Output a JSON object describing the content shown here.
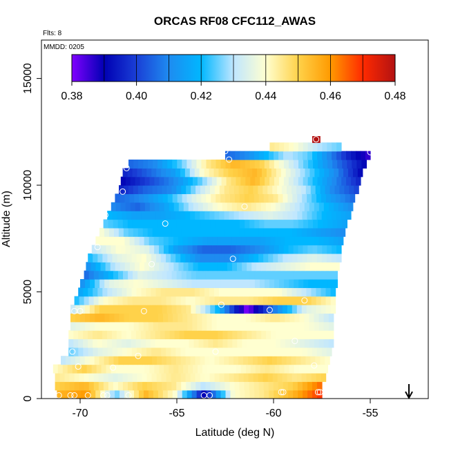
{
  "chart_data": {
    "type": "heatmap",
    "title": "ORCAS RF08 CFC112_AWAS",
    "subtitle": "Flts: 8",
    "annotation": "MMDD: 0205",
    "xlabel": "Latitude (deg N)",
    "ylabel": "Altitude (m)",
    "xlim": [
      -72,
      -52
    ],
    "ylim": [
      0,
      16800
    ],
    "x_ticks": [
      -70,
      -65,
      -60,
      -55
    ],
    "x_tick_labels": [
      "-70",
      "-65",
      "-60",
      "-55"
    ],
    "y_ticks": [
      0,
      5000,
      10000,
      15000
    ],
    "y_tick_labels": [
      "0",
      "5000",
      "10000",
      "15000"
    ],
    "colorbar": {
      "range": [
        0.38,
        0.48
      ],
      "ticks": [
        0.38,
        0.4,
        0.42,
        0.44,
        0.46,
        0.48
      ],
      "tick_labels": [
        "0.38",
        "0.40",
        "0.42",
        "0.44",
        "0.46",
        "0.48"
      ],
      "colors": [
        "#8000ff",
        "#0000b3",
        "#1a3fd6",
        "#1e8bf0",
        "#00b7ff",
        "#bfe6ff",
        "#ffffd0",
        "#ffd24a",
        "#ff9a00",
        "#ff2a00",
        "#b31212"
      ]
    },
    "arrow_marker": {
      "x": -53,
      "direction": "down"
    },
    "layers": [
      {
        "y0": 0,
        "y1": 400,
        "xmin": -71.2,
        "xmax": -57.5,
        "values": [
          0.455,
          0.46,
          0.425,
          0.455,
          0.44,
          0.39,
          0.44,
          0.445,
          0.455,
          0.47
        ]
      },
      {
        "y0": 400,
        "y1": 800,
        "xmin": -71.3,
        "xmax": -57.5,
        "values": [
          0.45,
          0.455,
          0.44,
          0.45,
          0.445,
          0.43,
          0.44,
          0.445,
          0.45,
          0.465
        ]
      },
      {
        "y0": 800,
        "y1": 1200,
        "xmin": -71.3,
        "xmax": -57.3,
        "values": [
          0.445,
          0.44,
          0.435,
          0.44,
          0.445,
          0.44,
          0.445,
          0.45,
          0.445,
          0.45
        ]
      },
      {
        "y0": 1200,
        "y1": 1600,
        "xmin": -71.4,
        "xmax": -57.2,
        "values": [
          0.44,
          0.45,
          0.44,
          0.44,
          0.445,
          0.44,
          0.44,
          0.445,
          0.44,
          0.44
        ]
      },
      {
        "y0": 1600,
        "y1": 2000,
        "xmin": -71.0,
        "xmax": -57.1,
        "values": [
          0.43,
          0.44,
          0.45,
          0.45,
          0.445,
          0.44,
          0.445,
          0.45,
          0.445,
          0.44
        ]
      },
      {
        "y0": 2000,
        "y1": 2400,
        "xmin": -70.6,
        "xmax": -57.0,
        "values": [
          0.425,
          0.435,
          0.44,
          0.445,
          0.44,
          0.44,
          0.44,
          0.44,
          0.44,
          0.435
        ]
      },
      {
        "y0": 2400,
        "y1": 2800,
        "xmin": -70.6,
        "xmax": -56.9,
        "values": [
          0.43,
          0.44,
          0.435,
          0.44,
          0.44,
          0.445,
          0.44,
          0.44,
          0.435,
          0.43
        ]
      },
      {
        "y0": 2800,
        "y1": 3200,
        "xmin": -70.6,
        "xmax": -56.9,
        "values": [
          0.44,
          0.445,
          0.44,
          0.445,
          0.45,
          0.45,
          0.445,
          0.44,
          0.44,
          0.44
        ]
      },
      {
        "y0": 3200,
        "y1": 3600,
        "xmin": -70.5,
        "xmax": -56.9,
        "values": [
          0.435,
          0.44,
          0.44,
          0.445,
          0.445,
          0.44,
          0.44,
          0.44,
          0.44,
          0.435
        ]
      },
      {
        "y0": 3600,
        "y1": 4000,
        "xmin": -70.5,
        "xmax": -56.9,
        "values": [
          0.45,
          0.455,
          0.45,
          0.45,
          0.445,
          0.44,
          0.44,
          0.445,
          0.44,
          0.43
        ]
      },
      {
        "y0": 4000,
        "y1": 4400,
        "xmin": -70.5,
        "xmax": -56.8,
        "values": [
          0.43,
          0.45,
          0.45,
          0.45,
          0.445,
          0.42,
          0.38,
          0.41,
          0.435,
          0.44
        ]
      },
      {
        "y0": 4400,
        "y1": 4800,
        "xmin": -70.3,
        "xmax": -56.8,
        "values": [
          0.42,
          0.44,
          0.445,
          0.445,
          0.44,
          0.445,
          0.445,
          0.45,
          0.45,
          0.44
        ]
      },
      {
        "y0": 4800,
        "y1": 5200,
        "xmin": -70.1,
        "xmax": -56.8,
        "values": [
          0.415,
          0.43,
          0.44,
          0.445,
          0.445,
          0.44,
          0.44,
          0.44,
          0.43,
          0.42
        ]
      },
      {
        "y0": 5200,
        "y1": 5600,
        "xmin": -70.0,
        "xmax": -56.7,
        "values": [
          0.41,
          0.435,
          0.44,
          0.435,
          0.43,
          0.43,
          0.43,
          0.425,
          0.42,
          0.42
        ]
      },
      {
        "y0": 5600,
        "y1": 6000,
        "xmin": -69.8,
        "xmax": -56.7,
        "values": [
          0.405,
          0.42,
          0.435,
          0.43,
          0.425,
          0.425,
          0.425,
          0.425,
          0.425,
          0.425
        ]
      },
      {
        "y0": 6000,
        "y1": 6400,
        "xmin": -69.7,
        "xmax": -56.6,
        "values": [
          0.41,
          0.43,
          0.44,
          0.43,
          0.42,
          0.42,
          0.43,
          0.435,
          0.44,
          0.44
        ]
      },
      {
        "y0": 6400,
        "y1": 6800,
        "xmin": -69.6,
        "xmax": -56.5,
        "values": [
          0.42,
          0.435,
          0.44,
          0.425,
          0.41,
          0.41,
          0.42,
          0.43,
          0.435,
          0.43
        ]
      },
      {
        "y0": 6800,
        "y1": 7200,
        "xmin": -69.4,
        "xmax": -56.5,
        "values": [
          0.43,
          0.44,
          0.435,
          0.415,
          0.405,
          0.405,
          0.41,
          0.42,
          0.425,
          0.42
        ]
      },
      {
        "y0": 7200,
        "y1": 7600,
        "xmin": -69.2,
        "xmax": -56.4,
        "values": [
          0.44,
          0.44,
          0.425,
          0.42,
          0.415,
          0.415,
          0.415,
          0.42,
          0.42,
          0.415
        ]
      },
      {
        "y0": 7600,
        "y1": 8000,
        "xmin": -69.0,
        "xmax": -56.3,
        "values": [
          0.44,
          0.425,
          0.42,
          0.42,
          0.42,
          0.42,
          0.42,
          0.42,
          0.415,
          0.41
        ]
      },
      {
        "y0": 8000,
        "y1": 8400,
        "xmin": -68.8,
        "xmax": -56.2,
        "values": [
          0.425,
          0.42,
          0.42,
          0.42,
          0.42,
          0.42,
          0.425,
          0.425,
          0.42,
          0.415
        ]
      },
      {
        "y0": 8400,
        "y1": 8800,
        "xmin": -68.6,
        "xmax": -56.0,
        "values": [
          0.42,
          0.415,
          0.415,
          0.42,
          0.425,
          0.43,
          0.435,
          0.43,
          0.42,
          0.415
        ]
      },
      {
        "y0": 8800,
        "y1": 9200,
        "xmin": -68.4,
        "xmax": -55.9,
        "values": [
          0.41,
          0.405,
          0.415,
          0.43,
          0.44,
          0.445,
          0.44,
          0.43,
          0.42,
          0.41
        ]
      },
      {
        "y0": 9200,
        "y1": 9600,
        "xmin": -68.2,
        "xmax": -55.8,
        "values": [
          0.405,
          0.41,
          0.42,
          0.435,
          0.445,
          0.45,
          0.445,
          0.43,
          0.415,
          0.405
        ]
      },
      {
        "y0": 9600,
        "y1": 10000,
        "xmin": -68.0,
        "xmax": -55.6,
        "values": [
          0.395,
          0.405,
          0.41,
          0.43,
          0.445,
          0.45,
          0.44,
          0.43,
          0.41,
          0.4
        ]
      },
      {
        "y0": 10000,
        "y1": 10400,
        "xmin": -67.9,
        "xmax": -55.5,
        "values": [
          0.39,
          0.4,
          0.41,
          0.425,
          0.445,
          0.455,
          0.44,
          0.425,
          0.41,
          0.395
        ]
      },
      {
        "y0": 10400,
        "y1": 10800,
        "xmin": -67.8,
        "xmax": -55.4,
        "values": [
          0.395,
          0.405,
          0.415,
          0.44,
          0.45,
          0.455,
          0.44,
          0.425,
          0.41,
          0.39
        ]
      },
      {
        "y0": 10800,
        "y1": 11200,
        "xmin": -67.5,
        "xmax": -55.2,
        "values": [
          0.405,
          0.41,
          0.425,
          0.445,
          0.455,
          0.45,
          0.435,
          0.42,
          0.405,
          0.39
        ]
      },
      {
        "y0": 11200,
        "y1": 11600,
        "xmin": -62.5,
        "xmax": -55.0,
        "values": [
          0.405,
          0.41,
          0.42,
          0.43,
          0.425,
          0.41,
          0.395,
          0.385
        ]
      },
      {
        "y0": 11600,
        "y1": 12000,
        "xmin": -60.2,
        "xmax": -56.5,
        "values": [
          0.445,
          0.44,
          0.43,
          0.425
        ]
      },
      {
        "y0": 12000,
        "y1": 12300,
        "xmin": -58.0,
        "xmax": -57.6,
        "values": [
          0.48
        ]
      }
    ],
    "samples": [
      {
        "x": -71.1,
        "y": 150
      },
      {
        "x": -70.5,
        "y": 150
      },
      {
        "x": -70.3,
        "y": 150
      },
      {
        "x": -69.6,
        "y": 150
      },
      {
        "x": -68.8,
        "y": 150
      },
      {
        "x": -68.6,
        "y": 150
      },
      {
        "x": -67.5,
        "y": 150
      },
      {
        "x": -63.6,
        "y": 150
      },
      {
        "x": -63.3,
        "y": 150
      },
      {
        "x": -59.6,
        "y": 300
      },
      {
        "x": -59.5,
        "y": 300
      },
      {
        "x": -57.7,
        "y": 300
      },
      {
        "x": -57.6,
        "y": 300
      },
      {
        "x": -70.1,
        "y": 1500
      },
      {
        "x": -68.3,
        "y": 1450
      },
      {
        "x": -67.0,
        "y": 2000
      },
      {
        "x": -63.0,
        "y": 2200
      },
      {
        "x": -57.9,
        "y": 1550
      },
      {
        "x": -58.9,
        "y": 2700
      },
      {
        "x": -70.4,
        "y": 2200
      },
      {
        "x": -70.3,
        "y": 4100
      },
      {
        "x": -70.0,
        "y": 4100
      },
      {
        "x": -66.7,
        "y": 4100
      },
      {
        "x": -62.7,
        "y": 4400
      },
      {
        "x": -60.2,
        "y": 4150
      },
      {
        "x": -58.4,
        "y": 4600
      },
      {
        "x": -69.1,
        "y": 7100
      },
      {
        "x": -66.3,
        "y": 6300
      },
      {
        "x": -62.1,
        "y": 6550
      },
      {
        "x": -68.7,
        "y": 8600
      },
      {
        "x": -65.6,
        "y": 8200
      },
      {
        "x": -61.5,
        "y": 9000
      },
      {
        "x": -55.9,
        "y": 8050
      },
      {
        "x": -67.8,
        "y": 9700
      },
      {
        "x": -67.6,
        "y": 10800
      },
      {
        "x": -62.3,
        "y": 11200
      },
      {
        "x": -62.5,
        "y": 11600
      },
      {
        "x": -55.0,
        "y": 11550
      },
      {
        "x": -57.8,
        "y": 12150
      }
    ]
  }
}
